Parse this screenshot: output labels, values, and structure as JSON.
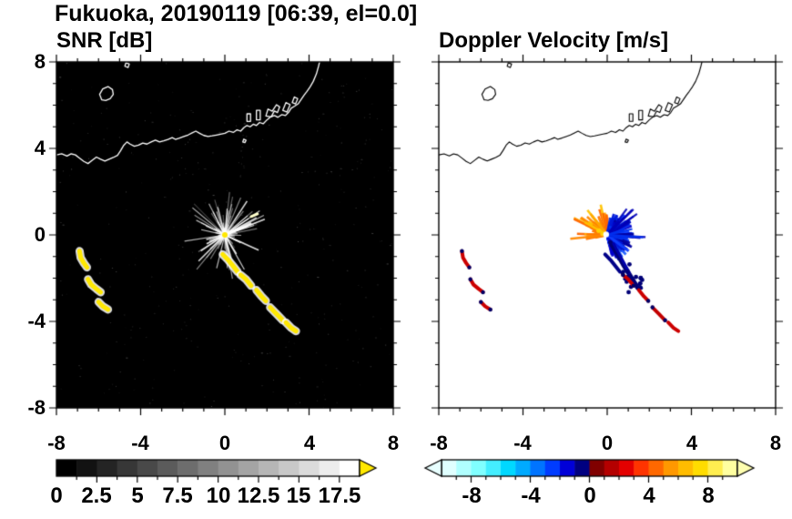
{
  "header": {
    "title": "Fukuoka, 20190119 [06:39, el=0.0]"
  },
  "chart_data": {
    "type": "heatmap",
    "description": "Dual-panel weather radar PPI display (SNR and Doppler velocity) over Fukuoka with coastline overlay",
    "x_range": [
      -8,
      8
    ],
    "y_range": [
      -8,
      8
    ],
    "x_tick_labels": [
      "-8",
      "-4",
      "0",
      "4",
      "8"
    ],
    "y_tick_labels": [
      "8",
      "4",
      "0",
      "-4",
      "-8"
    ],
    "x_tick_values": [
      -8,
      -4,
      0,
      4,
      8
    ],
    "y_tick_values": [
      8,
      4,
      0,
      -4,
      -8
    ],
    "minor_tick_step": 1,
    "radar_center": [
      0,
      0
    ],
    "panels": [
      {
        "key": "snr",
        "title": "SNR [dB]",
        "background": "#000000",
        "coast_color": "#ffffff",
        "colorbar": {
          "range": [
            0,
            18.75
          ],
          "bands": 15,
          "scale": "grayscale",
          "start_color": "#000000",
          "end_color": "#ffffff",
          "overflow_arrow": "#ffe800",
          "tick_labels": [
            "0",
            "2.5",
            "5",
            "7.5",
            "10",
            "12.5",
            "15",
            "17.5"
          ],
          "tick_values": [
            0,
            2.5,
            5,
            7.5,
            10,
            12.5,
            15,
            17.5
          ],
          "minor_tick_step": 1.25
        }
      },
      {
        "key": "velocity",
        "title": "Doppler Velocity [m/s]",
        "background": "#ffffff",
        "coast_color": "#000000",
        "colorbar": {
          "range": [
            -10,
            10
          ],
          "band_colors": [
            "#e0ffff",
            "#b0ffff",
            "#80ffff",
            "#44eeff",
            "#00d8ff",
            "#00aaff",
            "#0074ff",
            "#003cff",
            "#0000d8",
            "#000080",
            "#800000",
            "#b40000",
            "#e40000",
            "#ff3400",
            "#ff6800",
            "#ff9800",
            "#ffbc00",
            "#ffdc00",
            "#ffee50",
            "#ffffa0"
          ],
          "underflow_arrow": "#e8ffff",
          "overflow_arrow": "#ffffb0",
          "tick_labels": [
            "-8",
            "-4",
            "0",
            "4",
            "8"
          ],
          "tick_values": [
            -8,
            -4,
            0,
            4,
            8
          ],
          "minor_tick_step": 1
        }
      }
    ],
    "coastline": [
      [
        [
          -8,
          3.7
        ],
        [
          -7.75,
          3.75
        ],
        [
          -7.5,
          3.65
        ],
        [
          -7.3,
          3.75
        ],
        [
          -7.1,
          3.7
        ],
        [
          -6.9,
          3.55
        ],
        [
          -6.7,
          3.4
        ],
        [
          -6.5,
          3.3
        ],
        [
          -6.3,
          3.45
        ],
        [
          -6.1,
          3.6
        ],
        [
          -5.9,
          3.5
        ],
        [
          -5.7,
          3.42
        ],
        [
          -5.5,
          3.5
        ],
        [
          -5.3,
          3.58
        ],
        [
          -5.1,
          3.68
        ],
        [
          -4.95,
          3.9
        ],
        [
          -4.8,
          4.15
        ],
        [
          -4.65,
          4.3
        ],
        [
          -4.5,
          4.2
        ],
        [
          -4.3,
          4.1
        ],
        [
          -4.1,
          4.15
        ],
        [
          -3.9,
          4.25
        ],
        [
          -3.7,
          4.2
        ],
        [
          -3.5,
          4.3
        ],
        [
          -3.3,
          4.38
        ],
        [
          -3.1,
          4.3
        ],
        [
          -2.9,
          4.35
        ],
        [
          -2.7,
          4.42
        ],
        [
          -2.5,
          4.5
        ],
        [
          -2.35,
          4.42
        ],
        [
          -2.15,
          4.48
        ],
        [
          -1.95,
          4.55
        ],
        [
          -1.75,
          4.62
        ],
        [
          -1.55,
          4.72
        ],
        [
          -1.38,
          4.8
        ],
        [
          -1.2,
          4.7
        ],
        [
          -1,
          4.6
        ],
        [
          -0.8,
          4.55
        ],
        [
          -0.6,
          4.58
        ],
        [
          -0.4,
          4.62
        ],
        [
          -0.2,
          4.66
        ],
        [
          0,
          4.7
        ],
        [
          0.2,
          4.8
        ],
        [
          0.4,
          4.74
        ],
        [
          0.58,
          4.86
        ],
        [
          0.75,
          4.8
        ],
        [
          0.9,
          4.96
        ],
        [
          1.05,
          5.06
        ],
        [
          1.2,
          5
        ],
        [
          1.35,
          5.12
        ],
        [
          1.5,
          5.06
        ],
        [
          1.65,
          5.2
        ],
        [
          1.82,
          5.14
        ],
        [
          2,
          5.32
        ],
        [
          2.18,
          5.46
        ],
        [
          2.36,
          5.52
        ],
        [
          2.52,
          5.44
        ],
        [
          2.7,
          5.56
        ],
        [
          2.88,
          5.52
        ],
        [
          3.02,
          5.66
        ],
        [
          3.15,
          5.86
        ],
        [
          3.32,
          5.96
        ],
        [
          3.48,
          6.06
        ],
        [
          3.62,
          6.26
        ],
        [
          3.76,
          6.46
        ],
        [
          3.9,
          6.64
        ],
        [
          4.05,
          6.85
        ],
        [
          4.2,
          7.1
        ],
        [
          4.35,
          7.45
        ],
        [
          4.45,
          7.8
        ],
        [
          4.5,
          8
        ]
      ],
      [
        [
          1.05,
          5.25
        ],
        [
          1.05,
          5.6
        ],
        [
          1.22,
          5.6
        ],
        [
          1.22,
          5.25
        ],
        [
          1.05,
          5.25
        ]
      ],
      [
        [
          1.5,
          5.32
        ],
        [
          1.5,
          5.76
        ],
        [
          1.68,
          5.76
        ],
        [
          1.68,
          5.32
        ],
        [
          1.5,
          5.32
        ]
      ],
      [
        [
          1.95,
          5.5
        ],
        [
          2.05,
          5.82
        ],
        [
          2.25,
          5.72
        ],
        [
          2.45,
          6.02
        ],
        [
          2.6,
          5.92
        ],
        [
          2.5,
          5.66
        ],
        [
          2.35,
          5.73
        ],
        [
          2.2,
          5.46
        ],
        [
          1.95,
          5.5
        ]
      ],
      [
        [
          2.75,
          5.76
        ],
        [
          2.9,
          6.12
        ],
        [
          3.1,
          6.02
        ],
        [
          2.95,
          5.68
        ],
        [
          2.75,
          5.76
        ]
      ],
      [
        [
          3.2,
          6.12
        ],
        [
          3.3,
          6.38
        ],
        [
          3.46,
          6.3
        ],
        [
          3.36,
          6.06
        ],
        [
          3.2,
          6.12
        ]
      ],
      [
        [
          -5.85,
          6.25
        ],
        [
          -5.95,
          6.5
        ],
        [
          -5.8,
          6.75
        ],
        [
          -5.55,
          6.86
        ],
        [
          -5.34,
          6.72
        ],
        [
          -5.3,
          6.5
        ],
        [
          -5.45,
          6.3
        ],
        [
          -5.66,
          6.22
        ],
        [
          -5.85,
          6.25
        ]
      ],
      [
        [
          -4.75,
          7.8
        ],
        [
          -4.7,
          7.96
        ],
        [
          -4.54,
          7.9
        ],
        [
          -4.6,
          7.74
        ],
        [
          -4.75,
          7.8
        ]
      ],
      [
        [
          0.85,
          4.3
        ],
        [
          0.9,
          4.43
        ],
        [
          1.01,
          4.38
        ],
        [
          0.95,
          4.27
        ],
        [
          0.85,
          4.3
        ]
      ]
    ],
    "snr_features": {
      "noise": {
        "seed": 3,
        "count": 380,
        "color": "#cccccc"
      },
      "ray_fan": {
        "center": [
          0,
          0
        ],
        "angle_start_deg": -180,
        "angle_end_deg": 180,
        "ray_count": 100,
        "min_r": 0.3,
        "max_r": 2.1,
        "seed": 7,
        "color": "#ffffff",
        "width": 1.2,
        "shape": 1.6
      },
      "bright_rays": {
        "center": [
          0,
          0
        ],
        "angle_start_deg": -180,
        "angle_end_deg": 180,
        "ray_count": 12,
        "min_r": 0.9,
        "max_r": 2.2,
        "seed": 13,
        "color": "#ffffff",
        "width": 1.6,
        "alpha": 0.85,
        "shape": 1
      },
      "center_dot": {
        "pos": [
          0,
          0
        ],
        "radius_px": 3,
        "core_color": "#ffe800"
      },
      "arc_segments": [
        {
          "points": [
            [
              -0.1,
              -0.9
            ],
            [
              0.15,
              -1.15
            ],
            [
              0.4,
              -1.45
            ],
            [
              0.6,
              -1.7
            ]
          ],
          "color": "#ffe800",
          "halo": "#ffffff",
          "width": 5
        },
        {
          "points": [
            [
              0.75,
              -1.85
            ],
            [
              1,
              -2.05
            ],
            [
              1.25,
              -2.35
            ]
          ],
          "color": "#ffe800",
          "halo": "#ffffff",
          "width": 5
        },
        {
          "points": [
            [
              1.5,
              -2.55
            ],
            [
              1.75,
              -2.85
            ],
            [
              1.95,
              -3.05
            ]
          ],
          "color": "#ffe800",
          "halo": "#ffffff",
          "width": 5
        },
        {
          "points": [
            [
              2.15,
              -3.35
            ],
            [
              2.45,
              -3.65
            ],
            [
              2.75,
              -3.95
            ]
          ],
          "color": "#ffe800",
          "halo": "#ffffff",
          "width": 5
        },
        {
          "points": [
            [
              2.9,
              -4.05
            ],
            [
              3.15,
              -4.3
            ],
            [
              3.38,
              -4.45
            ]
          ],
          "color": "#ffe800",
          "halo": "#ffffff",
          "width": 5
        }
      ],
      "west_segments": [
        {
          "points": [
            [
              -6.9,
              -0.75
            ],
            [
              -6.85,
              -1.05
            ],
            [
              -6.7,
              -1.3
            ],
            [
              -6.55,
              -1.5
            ]
          ],
          "color": "#ffe800",
          "halo": "#ffffff",
          "width": 5
        },
        {
          "points": [
            [
              -6.5,
              -2.05
            ],
            [
              -6.35,
              -2.3
            ],
            [
              -6.1,
              -2.5
            ],
            [
              -5.9,
              -2.65
            ]
          ],
          "color": "#ffe800",
          "halo": "#ffffff",
          "width": 5
        },
        {
          "points": [
            [
              -6,
              -3.1
            ],
            [
              -5.8,
              -3.3
            ],
            [
              -5.55,
              -3.45
            ]
          ],
          "color": "#ffe800",
          "halo": "#ffffff",
          "width": 5
        }
      ],
      "dash": {
        "points": [
          [
            1.25,
            0.85
          ],
          [
            1.55,
            0.97
          ]
        ],
        "color": "#ffffcc",
        "width": 3
      }
    },
    "velocity_features": {
      "positive_fan": {
        "center": [
          0,
          0
        ],
        "angle_start_deg": 82,
        "angle_end_deg": 195,
        "ray_count": 55,
        "min_r": 0.3,
        "max_r": 1.8,
        "seed": 11,
        "colors": [
          "#ff8800",
          "#ff6600",
          "#ffaa00",
          "#ff7700",
          "#ffc400"
        ],
        "width": 2.6,
        "alpha": 0.95,
        "shape": 1.4
      },
      "negative_fan": {
        "center": [
          0,
          0
        ],
        "angle_start_deg": -78,
        "angle_end_deg": 80,
        "ray_count": 150,
        "min_r": 0.2,
        "max_r": 1.3,
        "seed": 23,
        "colors": [
          "#0030ee",
          "#0000cc",
          "#1040ff",
          "#0000a0",
          "#2060ff",
          "#0018d8"
        ],
        "width": 3,
        "alpha": 0.95,
        "shape": 1.1
      },
      "negative_long_rays": {
        "center": [
          0,
          0
        ],
        "angle_start_deg": -8,
        "angle_end_deg": 55,
        "ray_count": 16,
        "min_r": 0.8,
        "max_r": 1.9,
        "seed": 31,
        "colors": [
          "#0030ee",
          "#0000b8"
        ],
        "width": 2.2,
        "alpha": 0.9,
        "shape": 1
      },
      "navy_streaks": [
        {
          "points": [
            [
              0.15,
              -0.35
            ],
            [
              0.75,
              -1.35
            ],
            [
              1.45,
              -2.45
            ]
          ],
          "color": "#000077",
          "width": 5
        },
        {
          "points": [
            [
              0.3,
              -0.4
            ],
            [
              1.05,
              -1.75
            ]
          ],
          "color": "#0000aa",
          "width": 3
        }
      ],
      "navy_dots": {
        "seed": 41,
        "count": 16,
        "x_min": 0.7,
        "x_max": 1.75,
        "y_min": -2.7,
        "y_max": -1.3,
        "color": "#000077",
        "size": 2.4
      },
      "dark_arc": {
        "points": [
          [
            -0.1,
            -0.9
          ],
          [
            0.15,
            -1.15
          ],
          [
            0.4,
            -1.45
          ],
          [
            0.6,
            -1.7
          ]
        ],
        "color": "#000088",
        "width": 4
      },
      "red_segments": [
        {
          "points": [
            [
              0.75,
              -1.85
            ],
            [
              1,
              -2.05
            ],
            [
              1.25,
              -2.35
            ]
          ],
          "color": "#cc0000",
          "width": 4
        },
        {
          "points": [
            [
              1.5,
              -2.55
            ],
            [
              1.75,
              -2.85
            ],
            [
              1.95,
              -3.05
            ]
          ],
          "color": "#cc0000",
          "width": 4
        },
        {
          "points": [
            [
              2.15,
              -3.35
            ],
            [
              2.45,
              -3.65
            ],
            [
              2.75,
              -3.95
            ]
          ],
          "color": "#c40000",
          "width": 4
        },
        {
          "points": [
            [
              2.9,
              -4.05
            ],
            [
              3.15,
              -4.3
            ],
            [
              3.38,
              -4.45
            ]
          ],
          "color": "#cc0000",
          "width": 4
        },
        {
          "points": [
            [
              -6.9,
              -0.75
            ],
            [
              -6.85,
              -1.05
            ],
            [
              -6.7,
              -1.3
            ],
            [
              -6.55,
              -1.5
            ]
          ],
          "color": "#cc0000",
          "width": 4
        },
        {
          "points": [
            [
              -6.5,
              -2.05
            ],
            [
              -6.35,
              -2.3
            ],
            [
              -6.1,
              -2.5
            ],
            [
              -5.9,
              -2.65
            ]
          ],
          "color": "#cc0000",
          "width": 4
        },
        {
          "points": [
            [
              -6,
              -3.1
            ],
            [
              -5.8,
              -3.3
            ],
            [
              -5.55,
              -3.45
            ]
          ],
          "color": "#cc0000",
          "width": 4
        }
      ],
      "navy_tip_color": "#000066",
      "navy_tips": [
        [
          0.75,
          -1.85
        ],
        [
          1.25,
          -2.35
        ],
        [
          1.95,
          -3.05
        ],
        [
          2.15,
          -3.35
        ],
        [
          2.75,
          -3.95
        ],
        [
          -6.9,
          -0.75
        ],
        [
          -6.55,
          -1.5
        ],
        [
          -6.5,
          -2.05
        ],
        [
          -5.9,
          -2.65
        ],
        [
          -6,
          -3.1
        ],
        [
          -5.55,
          -3.45
        ]
      ],
      "yellow_specks": [
        [
          -0.22,
          0.06
        ],
        [
          -0.4,
          0.2
        ]
      ],
      "yellow_speck_color": "#ffd000",
      "center_dot": {
        "pos": [
          -0.05,
          0.02
        ],
        "radius_px": 3.2,
        "color": "#ffffff"
      }
    }
  }
}
